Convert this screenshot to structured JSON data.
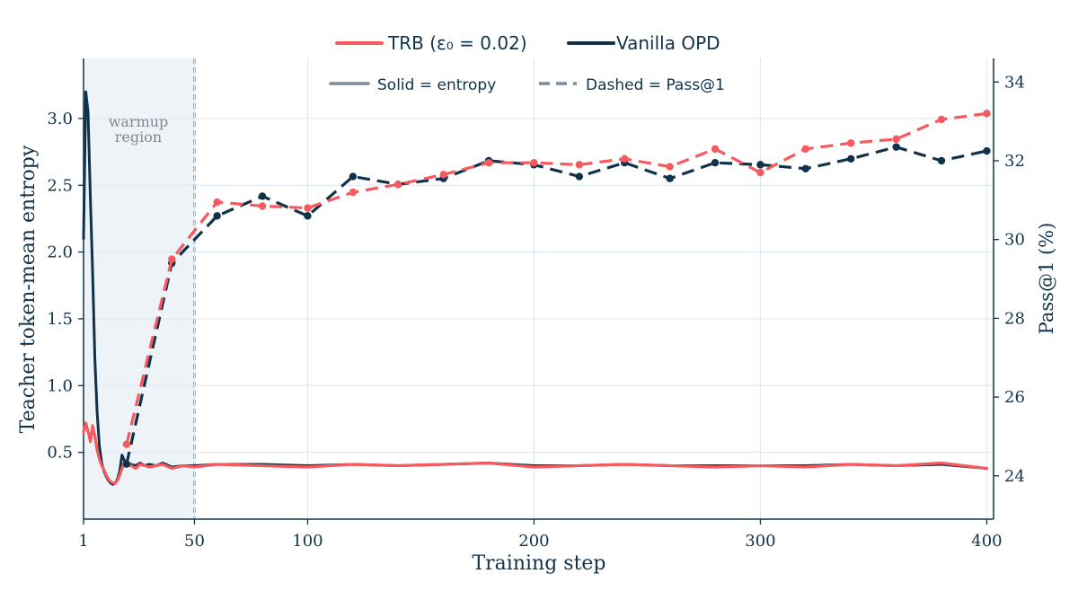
{
  "chart_data": {
    "type": "line",
    "xlabel": "Training step",
    "ylabel_left": "Teacher token-mean entropy",
    "ylabel_right": "Pass@1 (%)",
    "xlim": [
      1,
      403
    ],
    "ylim_left": [
      0.0,
      3.45
    ],
    "ylim_right": [
      22.9,
      34.6
    ],
    "x_ticks": [
      1,
      50,
      100,
      200,
      300,
      400
    ],
    "x_tick_labels": [
      "1",
      "50",
      "100",
      "200",
      "300",
      "400"
    ],
    "y_left_ticks": [
      0.5,
      1.0,
      1.5,
      2.0,
      2.5,
      3.0
    ],
    "y_left_tick_labels": [
      "0.5",
      "1.0",
      "1.5",
      "2.0",
      "2.5",
      "3.0"
    ],
    "y_right_ticks": [
      24,
      26,
      28,
      30,
      32,
      34
    ],
    "y_right_tick_labels": [
      "24",
      "26",
      "28",
      "30",
      "32",
      "34"
    ],
    "grid": true,
    "warmup_region": {
      "x": [
        1,
        50
      ],
      "label_line1": "warmup",
      "label_line2": "region"
    },
    "legend": {
      "placement": "top-center",
      "series_labels": [
        "TRB (ε₀ = 0.02)",
        "Vanilla OPD"
      ],
      "style_labels": [
        "Solid = entropy",
        "Dashed = Pass@1"
      ]
    },
    "colors": {
      "trb": "#f65a5f",
      "vanilla": "#10324a",
      "style_key": "#7f8a99",
      "warmup_fill": "#eef3f8",
      "warmup_line": "#2a8c84",
      "grid": "#dce7f0",
      "warmup_text": "#808891"
    },
    "entropy_series": [
      {
        "name": "TRB (ε₀ = 0.02)",
        "axis": "left",
        "color": "#f65a5f",
        "x": [
          1,
          2,
          3,
          4,
          5,
          6,
          7,
          8,
          9,
          10,
          11,
          12,
          13,
          14,
          15,
          16,
          17,
          18,
          19,
          20,
          22,
          24,
          26,
          28,
          30,
          33,
          36,
          40,
          45,
          50,
          60,
          80,
          100,
          120,
          140,
          160,
          180,
          200,
          220,
          240,
          260,
          280,
          300,
          320,
          340,
          360,
          380,
          400
        ],
        "y": [
          0.65,
          0.72,
          0.66,
          0.58,
          0.7,
          0.62,
          0.52,
          0.45,
          0.4,
          0.37,
          0.33,
          0.3,
          0.28,
          0.27,
          0.27,
          0.29,
          0.33,
          0.38,
          0.42,
          0.41,
          0.4,
          0.38,
          0.41,
          0.4,
          0.39,
          0.4,
          0.41,
          0.38,
          0.4,
          0.39,
          0.41,
          0.4,
          0.39,
          0.41,
          0.4,
          0.41,
          0.42,
          0.39,
          0.4,
          0.41,
          0.4,
          0.39,
          0.4,
          0.39,
          0.41,
          0.4,
          0.42,
          0.38
        ]
      },
      {
        "name": "Vanilla OPD",
        "axis": "left",
        "color": "#10324a",
        "x": [
          1,
          2,
          3,
          4,
          5,
          6,
          7,
          8,
          9,
          10,
          11,
          12,
          13,
          14,
          15,
          16,
          17,
          18,
          19,
          20,
          22,
          24,
          26,
          28,
          30,
          33,
          36,
          40,
          45,
          50,
          60,
          80,
          100,
          120,
          140,
          160,
          180,
          200,
          220,
          240,
          260,
          280,
          300,
          320,
          340,
          360,
          380,
          400
        ],
        "y": [
          2.1,
          3.2,
          3.05,
          2.4,
          1.85,
          1.2,
          0.8,
          0.55,
          0.42,
          0.36,
          0.32,
          0.29,
          0.27,
          0.26,
          0.27,
          0.3,
          0.36,
          0.48,
          0.44,
          0.42,
          0.41,
          0.4,
          0.42,
          0.4,
          0.41,
          0.4,
          0.42,
          0.39,
          0.4,
          0.4,
          0.41,
          0.41,
          0.4,
          0.41,
          0.4,
          0.41,
          0.42,
          0.4,
          0.4,
          0.41,
          0.4,
          0.4,
          0.4,
          0.4,
          0.41,
          0.4,
          0.41,
          0.38
        ]
      }
    ],
    "pass_series": [
      {
        "name": "TRB (ε₀ = 0.02)",
        "axis": "right",
        "color": "#f65a5f",
        "x": [
          20,
          40,
          60,
          80,
          100,
          120,
          140,
          160,
          180,
          200,
          220,
          240,
          260,
          280,
          300,
          320,
          340,
          360,
          380,
          400
        ],
        "y": [
          24.8,
          29.5,
          30.95,
          30.85,
          30.8,
          31.2,
          31.4,
          31.65,
          31.95,
          31.95,
          31.9,
          32.05,
          31.85,
          32.3,
          31.7,
          32.3,
          32.45,
          32.55,
          33.05,
          33.2
        ]
      },
      {
        "name": "Vanilla OPD",
        "axis": "right",
        "color": "#10324a",
        "x": [
          20,
          40,
          60,
          80,
          100,
          120,
          140,
          160,
          180,
          200,
          220,
          240,
          260,
          280,
          300,
          320,
          340,
          360,
          380,
          400
        ],
        "y": [
          24.3,
          29.4,
          30.6,
          31.1,
          30.6,
          31.6,
          31.4,
          31.55,
          32.0,
          31.9,
          31.6,
          31.95,
          31.55,
          31.95,
          31.9,
          31.8,
          32.05,
          32.35,
          32.0,
          32.25
        ]
      }
    ]
  }
}
